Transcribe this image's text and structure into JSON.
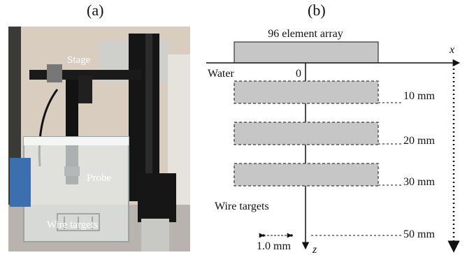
{
  "figure": {
    "panel_a_label": "(a)",
    "panel_b_label": "(b)"
  },
  "photo": {
    "labels": {
      "stage": "Stage",
      "probe": "Probe",
      "wire_targets": "Wire targets"
    }
  },
  "schematic": {
    "array_label": "96 element array",
    "water_label": "Water",
    "origin_label": "0",
    "x_axis_label": "x",
    "z_axis_label": "z",
    "depth_labels": [
      "10 mm",
      "20 mm",
      "30 mm",
      "50 mm"
    ],
    "wire_targets_label": "Wire targets",
    "spacing_label": "1.0 mm"
  },
  "colors": {
    "array_fill": "#c6c6c6",
    "region_fill": "#c6c6c6",
    "line": "#111111"
  }
}
